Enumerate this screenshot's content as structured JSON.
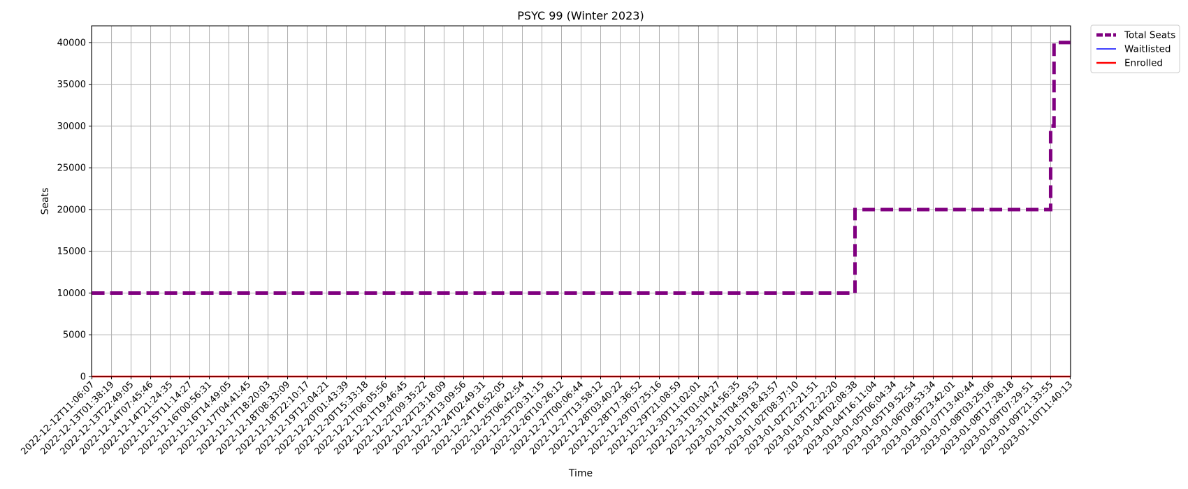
{
  "chart_data": {
    "type": "line",
    "title": "PSYC 99 (Winter 2023)",
    "xlabel": "Time",
    "ylabel": "Seats",
    "ylim": [
      0,
      42000
    ],
    "yticks": [
      0,
      5000,
      10000,
      15000,
      20000,
      25000,
      30000,
      35000,
      40000
    ],
    "grid": true,
    "legend_position": "outside-top-right",
    "x_tick_labels": [
      "2022-12-12T11:06:07",
      "2022-12-13T01:38:19",
      "2022-12-13T22:49:05",
      "2022-12-14T07:45:46",
      "2022-12-14T21:24:35",
      "2022-12-15T11:14:27",
      "2022-12-16T00:56:31",
      "2022-12-16T14:49:05",
      "2022-12-17T04:41:45",
      "2022-12-17T18:20:03",
      "2022-12-18T08:33:09",
      "2022-12-18T22:10:17",
      "2022-12-19T12:04:21",
      "2022-12-20T01:43:39",
      "2022-12-20T15:33:18",
      "2022-12-21T06:05:56",
      "2022-12-21T19:46:45",
      "2022-12-22T09:35:22",
      "2022-12-22T23:18:09",
      "2022-12-23T13:09:56",
      "2022-12-24T02:49:31",
      "2022-12-24T16:52:05",
      "2022-12-25T06:42:54",
      "2022-12-25T20:31:15",
      "2022-12-26T10:26:12",
      "2022-12-27T00:06:44",
      "2022-12-27T13:58:12",
      "2022-12-28T03:40:22",
      "2022-12-28T17:36:52",
      "2022-12-29T07:25:16",
      "2022-12-29T21:08:59",
      "2022-12-30T11:02:01",
      "2022-12-31T01:04:27",
      "2022-12-31T14:56:35",
      "2023-01-01T04:59:53",
      "2023-01-01T18:43:57",
      "2023-01-02T08:37:10",
      "2023-01-02T22:21:51",
      "2023-01-03T12:22:20",
      "2023-01-04T02:08:38",
      "2023-01-04T16:11:04",
      "2023-01-05T06:04:34",
      "2023-01-05T19:52:54",
      "2023-01-06T09:53:34",
      "2023-01-06T23:42:01",
      "2023-01-07T13:40:44",
      "2023-01-08T03:25:06",
      "2023-01-08T17:28:18",
      "2023-01-09T07:29:51",
      "2023-01-09T21:33:55",
      "2023-01-10T11:40:13"
    ],
    "series": [
      {
        "name": "Total Seats",
        "color": "#800080",
        "style": "dashed",
        "step": true,
        "points": [
          {
            "x": "2022-12-12T11:06:07",
            "y": 10000
          },
          {
            "x": "2023-01-04T02:08:38",
            "y": 10000
          },
          {
            "x": "2023-01-04T02:08:38",
            "y": 20000
          },
          {
            "x": "2023-01-09T21:33:55",
            "y": 20000
          },
          {
            "x": "2023-01-09T21:33:55",
            "y": 30000
          },
          {
            "x": "2023-01-10T00:00:00",
            "y": 30000
          },
          {
            "x": "2023-01-10T00:00:00",
            "y": 40000
          },
          {
            "x": "2023-01-10T11:40:13",
            "y": 40000
          }
        ]
      },
      {
        "name": "Waitlisted",
        "color": "#0000ff",
        "style": "solid",
        "step": false,
        "points": [
          {
            "x": "2022-12-12T11:06:07",
            "y": 0
          },
          {
            "x": "2023-01-10T11:40:13",
            "y": 0
          }
        ]
      },
      {
        "name": "Enrolled",
        "color": "#ff0000",
        "style": "solid",
        "step": false,
        "points": [
          {
            "x": "2022-12-12T11:06:07",
            "y": 0
          },
          {
            "x": "2023-01-10T11:40:13",
            "y": 0
          }
        ]
      }
    ]
  }
}
